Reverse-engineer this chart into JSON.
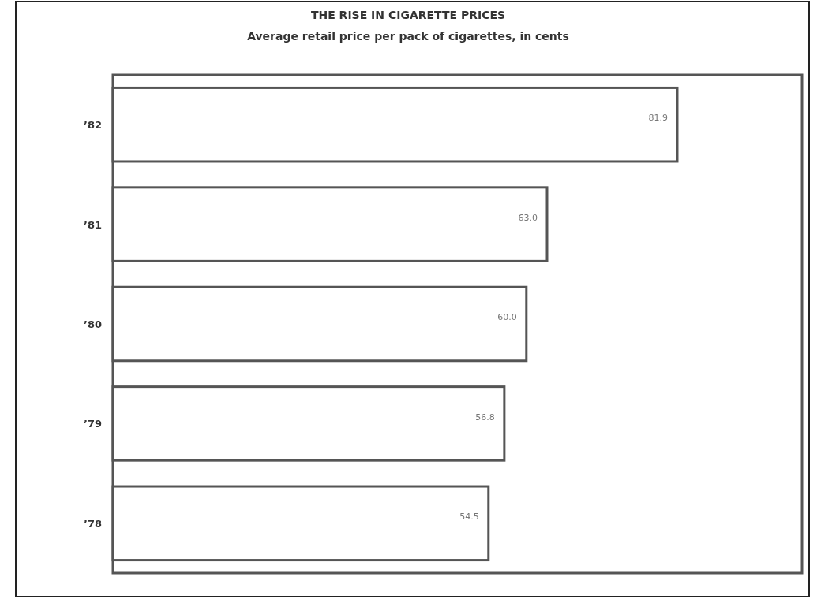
{
  "chart_data": {
    "type": "bar",
    "orientation": "horizontal",
    "title": "THE RISE IN CIGARETTE PRICES",
    "subtitle": "Average retail price per pack of cigarettes, in cents",
    "categories": [
      "’82",
      "’81",
      "’80",
      "’79",
      "’78"
    ],
    "values": [
      81.9,
      63.0,
      60.0,
      56.8,
      54.5
    ],
    "value_labels": [
      "81.9",
      "63.0",
      "60.0",
      "56.8",
      "54.5"
    ],
    "color": "#ffffff",
    "xlim": [
      0,
      100
    ],
    "tick_labels": "y",
    "grid": false,
    "legend": false
  }
}
